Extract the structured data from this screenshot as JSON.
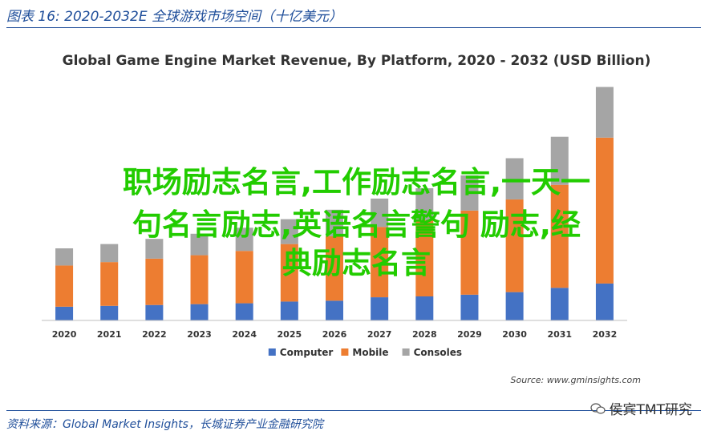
{
  "header": {
    "figure_title": "图表 16:  2020-2032E 全球游戏市场空间（十亿美元）"
  },
  "chart_data": {
    "type": "bar",
    "stacked": true,
    "title": "Global Game Engine Market Revenue, By Platform, 2020 - 2032 (USD Billion)",
    "categories": [
      "2020",
      "2021",
      "2022",
      "2023",
      "2024",
      "2025",
      "2026",
      "2027",
      "2028",
      "2029",
      "2030",
      "2031",
      "2032"
    ],
    "series": [
      {
        "name": "Computer",
        "color": "#4472c4",
        "values": [
          0.8,
          0.85,
          0.9,
          0.95,
          1.0,
          1.1,
          1.15,
          1.35,
          1.4,
          1.5,
          1.65,
          1.9,
          2.15
        ]
      },
      {
        "name": "Mobile",
        "color": "#ed7d31",
        "values": [
          2.4,
          2.55,
          2.7,
          2.85,
          3.05,
          3.35,
          3.75,
          4.1,
          4.45,
          4.9,
          5.4,
          6.0,
          8.5
        ]
      },
      {
        "name": "Consoles",
        "color": "#a5a5a5",
        "values": [
          1.0,
          1.05,
          1.15,
          1.25,
          1.35,
          1.45,
          1.55,
          1.65,
          1.85,
          2.05,
          2.4,
          2.8,
          2.95
        ]
      }
    ],
    "ylim": [
      0,
      14
    ],
    "grid": false,
    "legend_position": "bottom"
  },
  "source_note": "Source: www.gminsights.com",
  "overlay": {
    "line1": "职场励志名言,工作励志名言,一天一",
    "line2": "句名言励志,英语名言警句 励志,经",
    "line3": "典励志名言"
  },
  "footer": {
    "source": "资料来源：Global Market Insights，长城证券产业金融研究院"
  },
  "watermark": {
    "text": "侯宾TMT研究",
    "icon": "wechat-icon"
  }
}
